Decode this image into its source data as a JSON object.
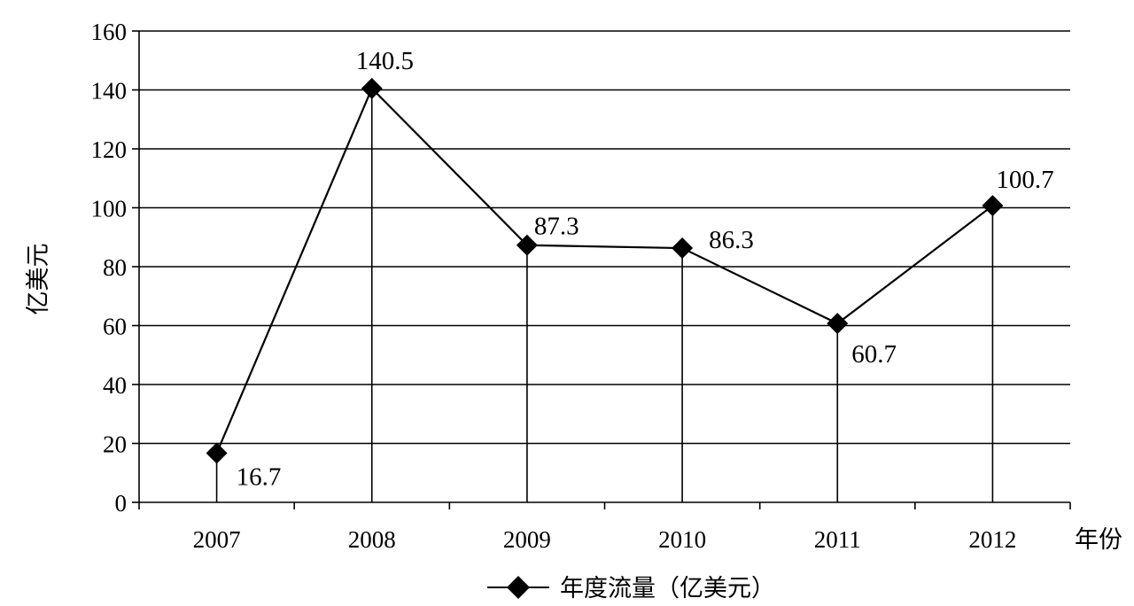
{
  "chart_data": {
    "type": "line",
    "x": [
      "2007",
      "2008",
      "2009",
      "2010",
      "2011",
      "2012"
    ],
    "series": [
      {
        "name": "年度流量（亿美元）",
        "values": [
          16.7,
          140.5,
          87.3,
          86.3,
          60.7,
          100.7
        ]
      }
    ],
    "data_labels": [
      "16.7",
      "140.5",
      "87.3",
      "86.3",
      "60.7",
      "100.7"
    ],
    "ylabel": "亿美元",
    "xlabel": "年份",
    "ylim": [
      0,
      160
    ],
    "yticks": [
      0,
      20,
      40,
      60,
      80,
      100,
      120,
      140,
      160
    ],
    "grid": true,
    "legend_position": "bottom",
    "line_color": "#000000",
    "marker": "diamond"
  }
}
